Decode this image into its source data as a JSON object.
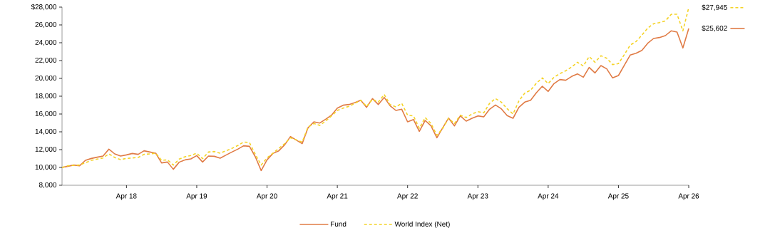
{
  "chart_data": {
    "type": "line",
    "x": [
      "2017-05",
      "2017-06",
      "2017-07",
      "2017-08",
      "2017-09",
      "2017-10",
      "2017-11",
      "2017-12",
      "2018-01",
      "2018-02",
      "2018-03",
      "2018-04",
      "2018-05",
      "2018-06",
      "2018-07",
      "2018-08",
      "2018-09",
      "2018-10",
      "2018-11",
      "2018-12",
      "2019-01",
      "2019-02",
      "2019-03",
      "2019-04",
      "2019-05",
      "2019-06",
      "2019-07",
      "2019-08",
      "2019-09",
      "2019-10",
      "2019-11",
      "2019-12",
      "2020-01",
      "2020-02",
      "2020-03",
      "2020-04",
      "2020-05",
      "2020-06",
      "2020-07",
      "2020-08",
      "2020-10",
      "2020-11",
      "2020-12",
      "2021-01",
      "2021-02",
      "2021-03",
      "2021-04",
      "2021-05",
      "2021-06",
      "2021-07",
      "2021-08",
      "2021-09",
      "2021-10",
      "2021-11",
      "2021-12",
      "2022-01",
      "2022-02",
      "2022-03",
      "2022-04",
      "2022-05",
      "2022-06",
      "2022-07",
      "2022-08",
      "2022-09",
      "2022-10",
      "2022-11",
      "2022-12",
      "2023-01",
      "2023-02",
      "2023-03",
      "2023-04",
      "2023-05",
      "2023-06",
      "2023-07",
      "2023-08",
      "2023-09",
      "2023-10",
      "2023-11",
      "2023-12",
      "2024-01",
      "2024-02",
      "2024-03",
      "2024-04",
      "2024-05",
      "2024-06",
      "2024-07",
      "2024-08",
      "2024-09",
      "2024-10",
      "2024-11",
      "2024-12",
      "2025-01",
      "2025-02",
      "2025-03",
      "2025-04",
      "2025-05",
      "2025-06",
      "2025-07",
      "2025-08",
      "2025-09",
      "2025-10",
      "2025-11",
      "2025-12",
      "2026-01",
      "2026-02",
      "2026-03",
      "2026-04"
    ],
    "series": [
      {
        "name": "Fund",
        "color": "#e07b45",
        "line_style": "solid",
        "values": [
          10000,
          10130,
          10270,
          10190,
          10800,
          11010,
          11150,
          11280,
          12050,
          11520,
          11280,
          11410,
          11570,
          11470,
          11870,
          11730,
          11600,
          10510,
          10610,
          9790,
          10590,
          10850,
          10960,
          11330,
          10610,
          11280,
          11250,
          11040,
          11390,
          11730,
          12050,
          12430,
          12370,
          11200,
          9650,
          10850,
          11570,
          11867,
          12533,
          13467,
          12667,
          14453,
          15120,
          14987,
          15413,
          15867,
          16667,
          16987,
          17067,
          17280,
          17547,
          16747,
          17733,
          17067,
          17867,
          16933,
          16400,
          16533,
          15120,
          15387,
          14053,
          15280,
          14667,
          13333,
          14453,
          15547,
          14667,
          15787,
          15200,
          15520,
          15787,
          15680,
          16533,
          17013,
          16587,
          15813,
          15520,
          16747,
          17333,
          17547,
          18400,
          19120,
          18533,
          19413,
          19867,
          19787,
          20213,
          20507,
          20133,
          21227,
          20613,
          21440,
          21067,
          20053,
          20320,
          21467,
          22613,
          22827,
          23147,
          23947,
          24480,
          24587,
          24800,
          25333,
          25200,
          23413,
          25602
        ]
      },
      {
        "name": "World Index (Net)",
        "color": "#f5d327",
        "line_style": "dashed",
        "values": [
          10000,
          10187,
          10230,
          10267,
          10533,
          10800,
          10933,
          11067,
          11520,
          11120,
          10880,
          11013,
          11067,
          11120,
          11467,
          11520,
          11600,
          10800,
          10853,
          10267,
          10933,
          11200,
          11333,
          11600,
          10987,
          11733,
          11787,
          11600,
          11867,
          12133,
          12453,
          12853,
          12800,
          11467,
          10267,
          11067,
          11600,
          12133,
          12667,
          13333,
          12853,
          14533,
          14933,
          14720,
          15200,
          15787,
          16400,
          16667,
          16853,
          17200,
          17547,
          16853,
          17653,
          17333,
          18187,
          17067,
          16800,
          17200,
          15867,
          15787,
          14400,
          15600,
          14933,
          13600,
          14400,
          15520,
          14933,
          15867,
          15600,
          16000,
          16267,
          16133,
          17200,
          17733,
          17333,
          16587,
          16000,
          17467,
          18347,
          18667,
          19467,
          20053,
          19413,
          20133,
          20533,
          20853,
          21280,
          21813,
          21387,
          22453,
          21813,
          22533,
          22267,
          21547,
          21653,
          22667,
          23733,
          24133,
          24853,
          25653,
          26133,
          26267,
          26453,
          27187,
          27200,
          25333,
          27945
        ]
      }
    ],
    "xlim": [
      "2017-05",
      "2026-04"
    ],
    "xticks": [
      {
        "value": "2018-04",
        "label": "Apr 18"
      },
      {
        "value": "2019-04",
        "label": "Apr 19"
      },
      {
        "value": "2020-04",
        "label": "Apr 20"
      },
      {
        "value": "2021-04",
        "label": "Apr 21"
      },
      {
        "value": "2022-04",
        "label": "Apr 22"
      },
      {
        "value": "2023-04",
        "label": "Apr 23"
      },
      {
        "value": "2024-04",
        "label": "Apr 24"
      },
      {
        "value": "2025-04",
        "label": "Apr 25"
      },
      {
        "value": "2026-04",
        "label": "Apr 26"
      }
    ],
    "ylim": [
      8000,
      28000
    ],
    "yticks": [
      {
        "value": 8000,
        "label": "8,000"
      },
      {
        "value": 10000,
        "label": "10,000"
      },
      {
        "value": 12000,
        "label": "12,000"
      },
      {
        "value": 14000,
        "label": "14,000"
      },
      {
        "value": 16000,
        "label": "16,000"
      },
      {
        "value": 18000,
        "label": "18,000"
      },
      {
        "value": 20000,
        "label": "20,000"
      },
      {
        "value": 22000,
        "label": "22,000"
      },
      {
        "value": 24000,
        "label": "24,000"
      },
      {
        "value": 26000,
        "label": "26,000"
      },
      {
        "value": 28000,
        "label": "$28,000"
      }
    ],
    "legend": "bottom",
    "annotations": [
      {
        "text": "$27,945",
        "x": "2026-04",
        "y": 27945
      },
      {
        "text": "$25,602",
        "x": "2026-04",
        "y": 25602
      }
    ]
  }
}
